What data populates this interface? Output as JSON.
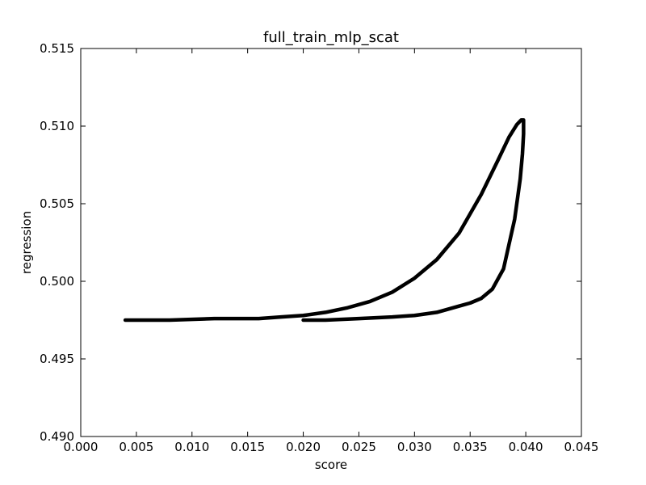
{
  "chart_data": {
    "type": "line",
    "title": "full_train_mlp_scat",
    "xlabel": "score",
    "ylabel": "regression",
    "xlim": [
      0.0,
      0.045
    ],
    "ylim": [
      0.49,
      0.515
    ],
    "xticks": [
      0.0,
      0.005,
      0.01,
      0.015,
      0.02,
      0.025,
      0.03,
      0.035,
      0.04,
      0.045
    ],
    "xtick_labels": [
      "0.000",
      "0.005",
      "0.010",
      "0.015",
      "0.020",
      "0.025",
      "0.030",
      "0.035",
      "0.040",
      "0.045"
    ],
    "yticks": [
      0.49,
      0.495,
      0.5,
      0.505,
      0.51,
      0.515
    ],
    "ytick_labels": [
      "0.490",
      "0.495",
      "0.500",
      "0.505",
      "0.510",
      "0.515"
    ],
    "grid": false,
    "color": "#000000",
    "series": [
      {
        "x": [
          0.004,
          0.008,
          0.012,
          0.016,
          0.018,
          0.02,
          0.022,
          0.024,
          0.026,
          0.028,
          0.03,
          0.032,
          0.034,
          0.036,
          0.0375,
          0.0385,
          0.0392,
          0.0396,
          0.0398,
          0.0398,
          0.0397,
          0.0395,
          0.039,
          0.038,
          0.037,
          0.036,
          0.035,
          0.034,
          0.032,
          0.03,
          0.028,
          0.025,
          0.022,
          0.02
        ],
        "y": [
          0.4975,
          0.4975,
          0.4976,
          0.4976,
          0.4977,
          0.4978,
          0.498,
          0.4983,
          0.4987,
          0.4993,
          0.5002,
          0.5014,
          0.5031,
          0.5056,
          0.5078,
          0.5093,
          0.5101,
          0.5104,
          0.5104,
          0.5095,
          0.5082,
          0.5066,
          0.504,
          0.5008,
          0.4995,
          0.4989,
          0.4986,
          0.4984,
          0.498,
          0.4978,
          0.4977,
          0.4976,
          0.4975,
          0.4975
        ]
      }
    ]
  }
}
